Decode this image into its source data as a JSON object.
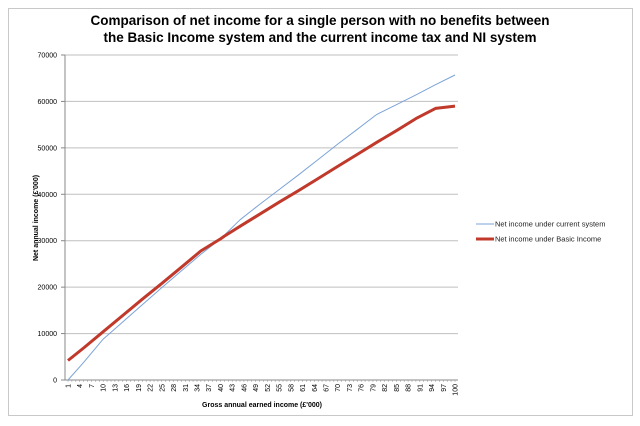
{
  "chart_data": {
    "type": "line",
    "title": "Comparison of net income for a single person with no benefits between the Basic Income system and the current income tax and NI system",
    "title_lines": [
      "Comparison of net income for a single person with no benefits between",
      "the Basic Income system and the current income tax and NI system"
    ],
    "xlabel": "Gross annual earned income (£'000)",
    "ylabel": "Net annual income (£'000)",
    "ylim": [
      0,
      70000
    ],
    "yticks": [
      0,
      10000,
      20000,
      30000,
      40000,
      50000,
      60000,
      70000
    ],
    "xlim": [
      1,
      100
    ],
    "xtick_labels": [
      "1",
      "4",
      "7",
      "10",
      "13",
      "16",
      "19",
      "22",
      "25",
      "28",
      "31",
      "34",
      "37",
      "40",
      "43",
      "46",
      "49",
      "52",
      "55",
      "58",
      "61",
      "64",
      "67",
      "70",
      "73",
      "76",
      "79",
      "82",
      "85",
      "88",
      "91",
      "94",
      "97",
      "100"
    ],
    "grid": "horizontal",
    "legend_position": "right",
    "x": [
      1,
      5,
      10,
      15,
      20,
      25,
      30,
      35,
      40,
      41,
      45,
      50,
      55,
      60,
      65,
      70,
      75,
      80,
      85,
      90,
      95,
      100
    ],
    "series": [
      {
        "name": "Net income under current system",
        "color": "#7ca3d8",
        "values": [
          0,
          3800,
          8800,
          12500,
          16200,
          19900,
          23500,
          27100,
          30400,
          31200,
          34500,
          37800,
          41000,
          44200,
          47500,
          50800,
          54000,
          57200,
          59300,
          61400,
          63600,
          65700
        ]
      },
      {
        "name": "Net income under Basic Income",
        "color": "#c0392b",
        "values": [
          4200,
          6900,
          10400,
          13900,
          17400,
          20800,
          24300,
          27800,
          30400,
          31000,
          33100,
          35700,
          38300,
          40800,
          43400,
          46000,
          48600,
          51200,
          53700,
          56300,
          58500,
          59000
        ]
      }
    ]
  },
  "legend": {
    "items": [
      {
        "label": "Net income under current system"
      },
      {
        "label": "Net income under Basic Income"
      }
    ]
  }
}
